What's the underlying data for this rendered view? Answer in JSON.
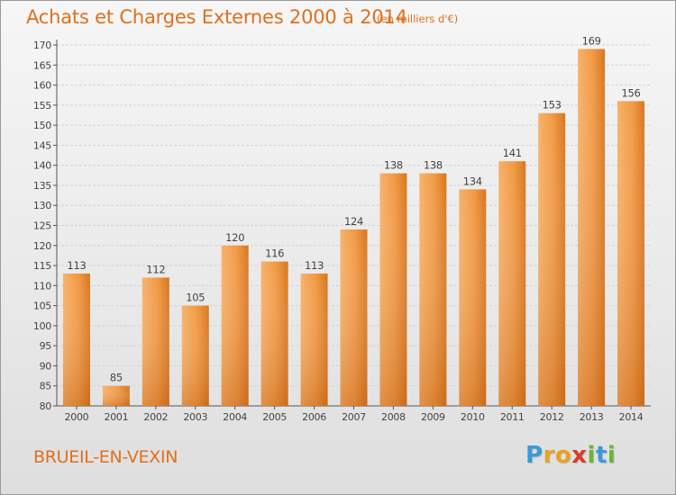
{
  "title": "Achats et Charges Externes 2000 à 2014",
  "subtitle": "(en milliers d'€)",
  "location": "BRUEIL-EN-VEXIN",
  "logo": {
    "letters": [
      "P",
      "r",
      "o",
      "x",
      "i",
      "t",
      "i"
    ],
    "colors": [
      "#3a9ad9",
      "#e8a21f",
      "#e8a21f",
      "#d93b2b",
      "#6bb535",
      "#3a9ad9",
      "#6bb535"
    ]
  },
  "colors": {
    "accent": "#e0701d",
    "bar_light": "#f5a657",
    "bar_dark": "#d96f1c"
  },
  "chart_data": {
    "type": "bar",
    "categories": [
      "2000",
      "2001",
      "2002",
      "2003",
      "2004",
      "2005",
      "2006",
      "2007",
      "2008",
      "2009",
      "2010",
      "2011",
      "2012",
      "2013",
      "2014"
    ],
    "values": [
      113,
      85,
      112,
      105,
      120,
      116,
      113,
      124,
      138,
      138,
      134,
      141,
      153,
      169,
      156
    ],
    "ylim": [
      80,
      170
    ],
    "yticks": [
      80,
      85,
      90,
      95,
      100,
      105,
      110,
      115,
      120,
      125,
      130,
      135,
      140,
      145,
      150,
      155,
      160,
      165,
      170
    ],
    "grid": true,
    "data_labels": true
  }
}
